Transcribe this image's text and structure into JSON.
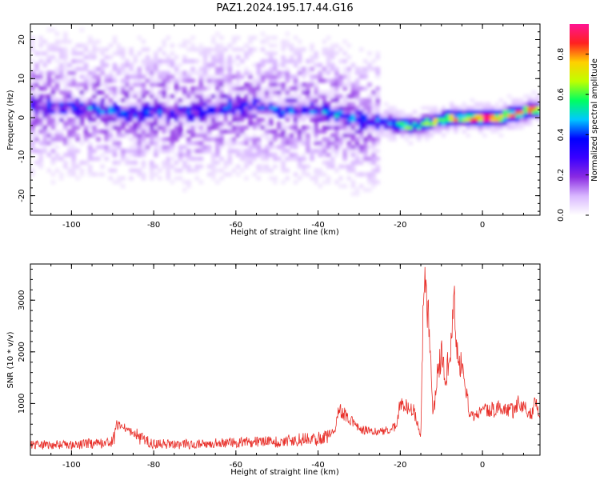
{
  "figure": {
    "title": "PAZ1.2024.195.17.44.G16"
  },
  "chart_data": [
    {
      "type": "heatmap",
      "title": "PAZ1.2024.195.17.44.G16",
      "xlabel": "Height of straight line (km)",
      "ylabel": "Frequency (Hz)",
      "xlim": [
        -110,
        14
      ],
      "ylim": [
        -25,
        24
      ],
      "xticks": [
        -100,
        -80,
        -60,
        -40,
        -20,
        0
      ],
      "yticks": [
        -20,
        -10,
        0,
        10,
        20
      ],
      "colorbar": {
        "label": "Normalized spectral amplitude",
        "range": [
          0,
          0.95
        ],
        "ticks": [
          0.0,
          0.2,
          0.4,
          0.6,
          0.8
        ],
        "colormap": "gist_ncar-like",
        "stops": [
          "#ffffff",
          "#d9b8ff",
          "#8a2be2",
          "#3a00ff",
          "#0000ff",
          "#00c8ff",
          "#00ff60",
          "#bfff00",
          "#ffd000",
          "#ff2020",
          "#ff1493"
        ]
      },
      "ridge": {
        "description": "main spectral trace (frequency vs height)",
        "x": [
          -108,
          -100,
          -92,
          -85,
          -78,
          -70,
          -62,
          -55,
          -48,
          -42,
          -36,
          -32,
          -28,
          -24,
          -20,
          -16,
          -12,
          -8,
          -4,
          0,
          4,
          8,
          12,
          14
        ],
        "y": [
          3,
          3,
          2,
          1,
          2,
          1,
          3,
          3,
          2,
          2,
          1,
          0,
          -1,
          -1,
          -2,
          -2,
          -1,
          0,
          0,
          0,
          0,
          1,
          2,
          2
        ],
        "amplitude": [
          0.18,
          0.2,
          0.28,
          0.22,
          0.2,
          0.18,
          0.22,
          0.2,
          0.22,
          0.24,
          0.3,
          0.3,
          0.3,
          0.32,
          0.5,
          0.46,
          0.55,
          0.62,
          0.72,
          0.9,
          0.82,
          0.62,
          0.68,
          0.6
        ]
      }
    },
    {
      "type": "line",
      "xlabel": "Height of straight line (km)",
      "ylabel": "SNR (10 * v/v)",
      "xlim": [
        -110,
        14
      ],
      "ylim": [
        0,
        3700
      ],
      "xticks": [
        -100,
        -80,
        -60,
        -40,
        -20,
        0
      ],
      "yticks": [
        1000,
        2000,
        3000
      ],
      "series": [
        {
          "color": "#e8302a",
          "x": [
            -110,
            -100,
            -90,
            -89,
            -80,
            -70,
            -60,
            -50,
            -40,
            -36,
            -35,
            -30,
            -25,
            -21,
            -20,
            -17,
            -15,
            -14.2,
            -13,
            -12,
            -11,
            -10,
            -9,
            -8,
            -7,
            -6,
            -5,
            -4,
            -3,
            -2,
            -1,
            0,
            4,
            8,
            9,
            12,
            13,
            14
          ],
          "y": [
            200,
            200,
            250,
            600,
            220,
            210,
            240,
            260,
            320,
            450,
            900,
            500,
            450,
            550,
            1000,
            900,
            400,
            3700,
            2400,
            700,
            1600,
            2000,
            1500,
            1900,
            3000,
            2000,
            1700,
            1200,
            800,
            750,
            850,
            850,
            900,
            850,
            1050,
            800,
            1100,
            700
          ]
        }
      ]
    }
  ]
}
